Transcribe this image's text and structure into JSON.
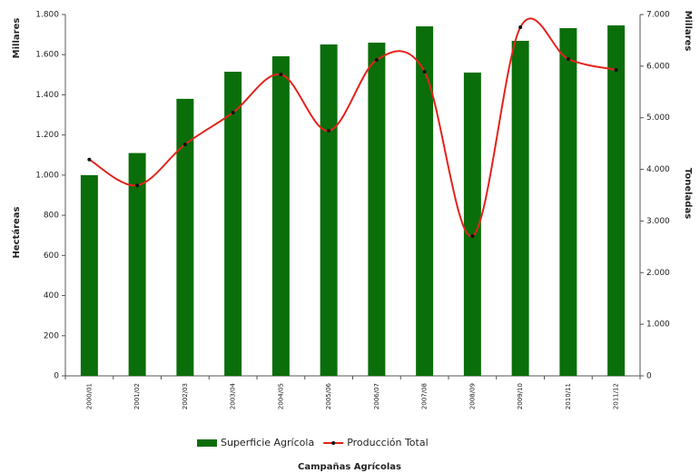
{
  "chart_data": {
    "type": "bar",
    "x_label": "Campañas Agrícolas",
    "y_label": "Hectáreas",
    "y_unit": "Millares",
    "y2_label": "Toneladas",
    "y2_unit": "Millares",
    "categories": [
      "2000/01",
      "2001/02",
      "2002/03",
      "2003/04",
      "2004/05",
      "2005/06",
      "2006/07",
      "2007/08",
      "2008/09",
      "2009/10",
      "2010/11",
      "2011/12"
    ],
    "series": [
      {
        "name": "Superficie Agrícola",
        "type": "bar",
        "color": "#0a6e0a",
        "axis": "y",
        "values": [
          1000,
          1110,
          1380,
          1515,
          1592,
          1651,
          1660,
          1741,
          1511,
          1669,
          1732,
          1746
        ]
      },
      {
        "name": "Producción Total",
        "type": "line",
        "color": "#e3231c",
        "marker_color": "#111111",
        "axis": "y2",
        "values": [
          4190,
          3690,
          4485,
          5100,
          5839,
          4749,
          6120,
          5892,
          2708,
          6753,
          6138,
          5927
        ]
      }
    ],
    "ylim": [
      0,
      1800
    ],
    "yticks": [
      0,
      200,
      400,
      600,
      800,
      {
        "value": 1000,
        "label": "1.000"
      },
      {
        "value": 1200,
        "label": "1.200"
      },
      {
        "value": 1400,
        "label": "1.400"
      },
      {
        "value": 1600,
        "label": "1.600"
      },
      {
        "value": 1800,
        "label": "1.800"
      }
    ],
    "y2lim": [
      0,
      7000
    ],
    "y2ticks": [
      0,
      {
        "value": 1000,
        "label": "1.000"
      },
      {
        "value": 2000,
        "label": "2.000"
      },
      {
        "value": 3000,
        "label": "3.000"
      },
      {
        "value": 4000,
        "label": "4.000"
      },
      {
        "value": 5000,
        "label": "5.000"
      },
      {
        "value": 6000,
        "label": "6.000"
      },
      {
        "value": 7000,
        "label": "7.000"
      }
    ],
    "grid": false,
    "legend": "bottom"
  }
}
